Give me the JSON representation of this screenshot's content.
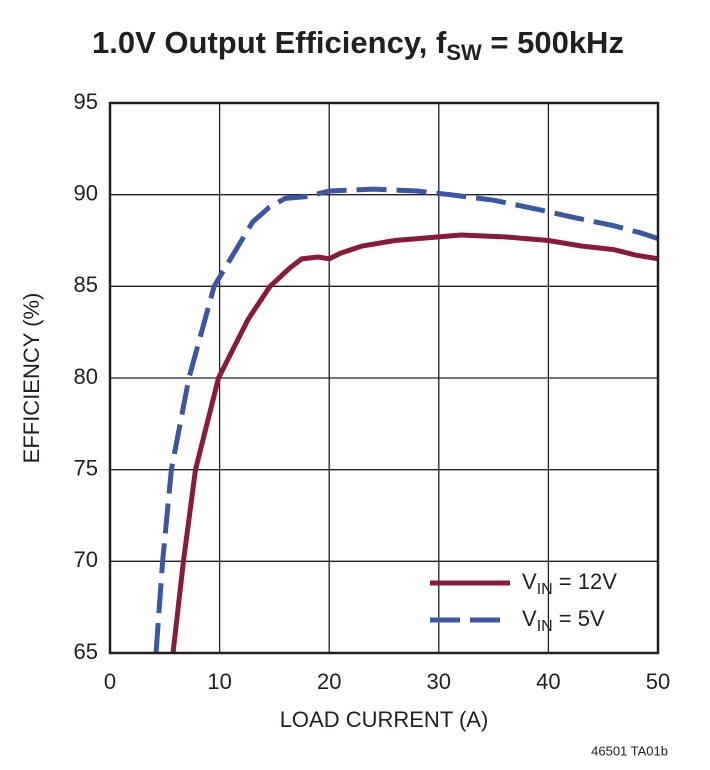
{
  "chart_data": {
    "type": "line",
    "title": {
      "text": "1.0V Output Efficiency, f",
      "sub": "SW",
      "tail": " = 500kHz"
    },
    "xlabel": "LOAD CURRENT (A)",
    "ylabel": "EFFICIENCY (%)",
    "note": "46501 TA01b",
    "xlim": [
      0,
      50
    ],
    "xticks": [
      0,
      10,
      20,
      30,
      40,
      50
    ],
    "ylim": [
      65,
      95
    ],
    "yticks": [
      65,
      70,
      75,
      80,
      85,
      90,
      95
    ],
    "grid": true,
    "legend": "lower right",
    "series": [
      {
        "name": [
          "V",
          "IN",
          " = 12V"
        ],
        "color": "#8b1a3a",
        "dash": false,
        "x": [
          5.75,
          6.7,
          7.8,
          9.9,
          12.6,
          14.6,
          16.4,
          17.5,
          19,
          20,
          21,
          23,
          26,
          30,
          32,
          36,
          40,
          43,
          46,
          48,
          50
        ],
        "values": [
          65,
          70,
          75,
          80,
          83.2,
          85,
          86,
          86.5,
          86.6,
          86.5,
          86.8,
          87.2,
          87.5,
          87.7,
          87.8,
          87.7,
          87.5,
          87.2,
          87.0,
          86.7,
          86.5
        ]
      },
      {
        "name": [
          "V",
          "IN",
          " = 5V"
        ],
        "color": "#3a56a5",
        "dash": true,
        "x": [
          4.2,
          4.8,
          5.6,
          7.2,
          9.5,
          11.5,
          13,
          14.5,
          16,
          18,
          20,
          24,
          28,
          31,
          35,
          39,
          42,
          46,
          48.5,
          50
        ],
        "values": [
          65,
          70,
          75,
          80,
          85,
          87,
          88.5,
          89.3,
          89.8,
          89.9,
          90.2,
          90.3,
          90.2,
          90.0,
          89.7,
          89.2,
          88.8,
          88.3,
          87.9,
          87.6
        ]
      }
    ]
  }
}
